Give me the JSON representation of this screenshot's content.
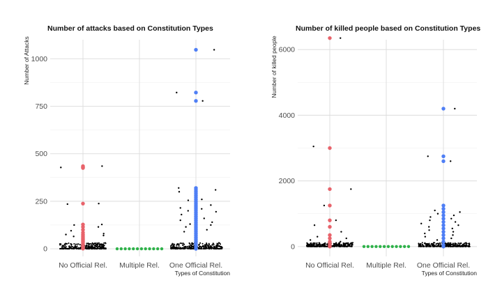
{
  "colors": {
    "jitter": "#000000",
    "no_official": "#E8636B",
    "multiple": "#2FB24A",
    "one_official": "#4F7FF5",
    "grid": "#dcdcdc",
    "text": "#4d4d4d"
  },
  "chart_data": [
    {
      "type": "scatter",
      "title": "Number of attacks based on Constitution Types",
      "xlabel": "Types of Constitution",
      "ylabel": "Number of Attacks",
      "categories": [
        "No Official Rel.",
        "Multiple Rel.",
        "One Official Rel."
      ],
      "y_ticks": [
        "0",
        "250",
        "500",
        "750",
        "1000"
      ],
      "ylim": [
        -40,
        1100
      ],
      "grid": true,
      "series": [
        {
          "category": "No Official Rel.",
          "color": "#E8636B",
          "values": [
            435,
            430,
            428,
            425,
            238,
            128,
            115,
            100,
            85,
            75,
            68,
            62,
            55,
            50,
            45,
            40,
            35,
            30,
            25,
            20,
            15,
            10,
            6,
            3,
            1
          ]
        },
        {
          "category": "Multiple Rel.",
          "color": "#2FB24A",
          "values": [
            0,
            0,
            0,
            0,
            0,
            0,
            0,
            0,
            0,
            0,
            0,
            0
          ]
        },
        {
          "category": "One Official Rel.",
          "color": "#4F7FF5",
          "values": [
            1047,
            822,
            778,
            320,
            310,
            300,
            290,
            280,
            270,
            260,
            250,
            240,
            230,
            220,
            210,
            200,
            190,
            180,
            170,
            160,
            150,
            140,
            130,
            120,
            110,
            100,
            90,
            80,
            70,
            60,
            50,
            40,
            30,
            20,
            10,
            0
          ]
        }
      ],
      "jitter_outliers": {
        "No Official Rel.": [
          435,
          428,
          238,
          235,
          128,
          125,
          115,
          95,
          80,
          75,
          70,
          65
        ],
        "Multiple Rel.": [],
        "One Official Rel.": [
          1047,
          822,
          778,
          320,
          310,
          300,
          260,
          255,
          230,
          215,
          210,
          200,
          195,
          180,
          160,
          150,
          140,
          130,
          125,
          115,
          100,
          90
        ]
      }
    },
    {
      "type": "scatter",
      "title": "Number of killed people based on Constitution Types",
      "xlabel": "Types of Constitution",
      "ylabel": "Number of killed people",
      "categories": [
        "No Official Rel.",
        "Multiple Rel.",
        "One Official Rel."
      ],
      "y_ticks": [
        "0",
        "2000",
        "4000",
        "6000"
      ],
      "ylim": [
        -300,
        6300
      ],
      "grid": true,
      "series": [
        {
          "category": "No Official Rel.",
          "color": "#E8636B",
          "values": [
            6350,
            3000,
            1750,
            1250,
            800,
            600,
            350,
            250,
            150,
            100,
            60,
            30,
            10,
            0
          ]
        },
        {
          "category": "Multiple Rel.",
          "color": "#2FB24A",
          "values": [
            0,
            0,
            0,
            0,
            0,
            0,
            0,
            0,
            0,
            0,
            0,
            0
          ]
        },
        {
          "category": "One Official Rel.",
          "color": "#4F7FF5",
          "values": [
            4200,
            2750,
            2600,
            1250,
            1150,
            1050,
            950,
            850,
            750,
            650,
            550,
            450,
            350,
            250,
            150,
            50,
            0
          ]
        }
      ],
      "jitter_outliers": {
        "No Official Rel.": [
          6350,
          3050,
          1750,
          1250,
          800,
          650,
          450,
          300,
          250,
          200,
          150
        ],
        "Multiple Rel.": [],
        "One Official Rel.": [
          4200,
          2750,
          2600,
          1100,
          1050,
          1000,
          950,
          900,
          850,
          800,
          750,
          700,
          650,
          600,
          550,
          500,
          450,
          400,
          350,
          300,
          250,
          200
        ]
      }
    }
  ]
}
